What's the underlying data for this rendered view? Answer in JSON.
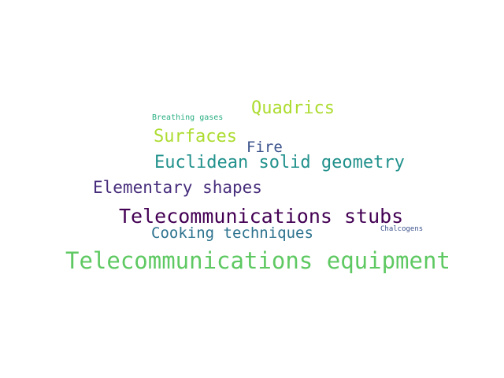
{
  "words": [
    {
      "text": "Telecommunications equipment",
      "color": "#5ec962"
    },
    {
      "text": "Telecommunications stubs",
      "color": "#440154"
    },
    {
      "text": "Euclidean solid geometry",
      "color": "#21918c"
    },
    {
      "text": "Elementary shapes",
      "color": "#472d7b"
    },
    {
      "text": "Quadrics",
      "color": "#addc30"
    },
    {
      "text": "Surfaces",
      "color": "#addc30"
    },
    {
      "text": "Cooking techniques",
      "color": "#2c728e"
    },
    {
      "text": "Fire",
      "color": "#3b528b"
    },
    {
      "text": "Breathing gases",
      "color": "#28ae80"
    },
    {
      "text": "Chalcogens",
      "color": "#3b528b"
    }
  ]
}
